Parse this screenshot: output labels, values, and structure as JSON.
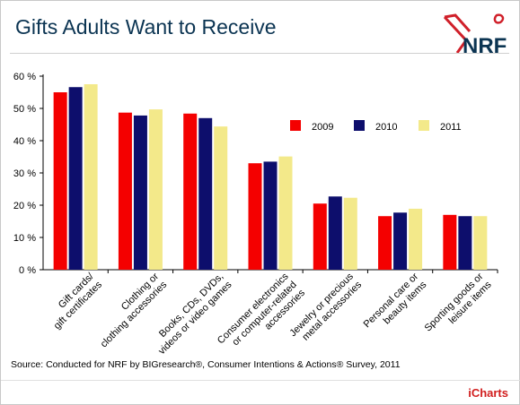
{
  "header": {
    "title": "Gifts Adults Want to Receive",
    "logo_text": "NRF"
  },
  "source": "Source: Conducted for NRF by BIGresearch®, Consumer Intentions & Actions® Survey, 2011",
  "brand": "iCharts",
  "colors": {
    "series_2009": "#f40000",
    "series_2010": "#0d0e6c",
    "series_2011": "#f3e98a",
    "title": "#0b3452",
    "logo_red": "#d0202a",
    "logo_blue": "#0b3452"
  },
  "chart_data": {
    "type": "bar",
    "title": "Gifts Adults Want to Receive",
    "categories": [
      [
        "Gift cards/",
        "gift certificates"
      ],
      [
        "Clothing or",
        "clothing accessories"
      ],
      [
        "Books, CDs, DVDs,",
        "videos or video games"
      ],
      [
        "Consumer electronics",
        "or computer-related",
        "accessories"
      ],
      [
        "Jewelry or precious",
        "metal accessories"
      ],
      [
        "Personal care or",
        "beauty items"
      ],
      [
        "Sporting goods or",
        "leisure items"
      ]
    ],
    "series": [
      {
        "name": "2009",
        "values": [
          55.0,
          48.7,
          48.4,
          33.0,
          20.5,
          16.6,
          17.0
        ]
      },
      {
        "name": "2010",
        "values": [
          56.6,
          47.8,
          47.0,
          33.5,
          22.7,
          17.7,
          16.6
        ]
      },
      {
        "name": "2011",
        "values": [
          57.5,
          49.7,
          44.4,
          35.1,
          22.3,
          18.9,
          16.6
        ]
      }
    ],
    "ylim": [
      0,
      60
    ],
    "yticks": [
      "0 %",
      "10 %",
      "20 %",
      "30 %",
      "40 %",
      "50 %",
      "60 %"
    ],
    "legend_position": "top-right",
    "grid": false
  }
}
